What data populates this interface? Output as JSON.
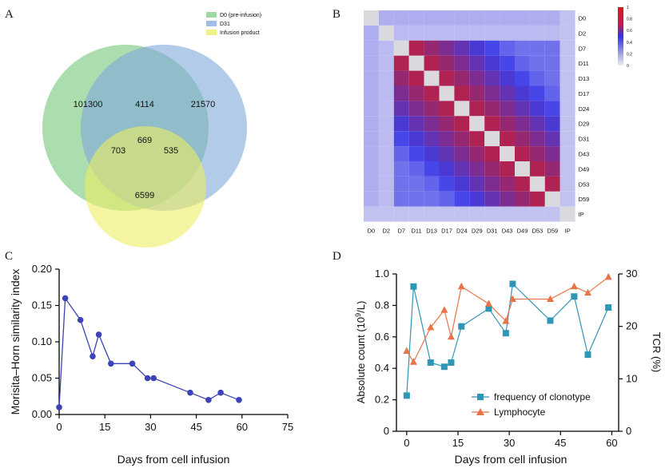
{
  "panel_labels": {
    "a": "A",
    "b": "B",
    "c": "C",
    "d": "D"
  },
  "chart_data": [
    {
      "panel": "A",
      "type": "venn",
      "sets": [
        {
          "name": "D0 (pre-infusion)",
          "color": "#7ecb83"
        },
        {
          "name": "D31",
          "color": "#7fa9db"
        },
        {
          "name": "Infusion product",
          "color": "#ecec62"
        }
      ],
      "regions": {
        "d0_only": 101300,
        "d31_only": 21570,
        "ip_only": 6599,
        "d0_d31": 4114,
        "d0_ip": 703,
        "d31_ip": 535,
        "all": 669
      },
      "region_labels": {
        "d0_only": "101300",
        "d31_only": "21570",
        "ip_only": "6599",
        "d0_d31": "4114",
        "d0_ip": "703",
        "d31_ip": "535",
        "all": "669"
      }
    },
    {
      "panel": "B",
      "type": "heatmap",
      "labels": [
        "D0",
        "D2",
        "D7",
        "D11",
        "D13",
        "D17",
        "D24",
        "D29",
        "D31",
        "D43",
        "D49",
        "D53",
        "D59",
        "IP"
      ],
      "colorbar_ticks": [
        "1",
        "0.8",
        "0.6",
        "0.4",
        "0.2",
        "0"
      ],
      "colors": {
        "high": "#d7191c",
        "mid": "#3232e6",
        "low": "#ececf4"
      }
    },
    {
      "panel": "C",
      "type": "line",
      "xlabel": "Days from cell infusion",
      "ylabel": "Morisita–Horn similarity index",
      "xlim": [
        0,
        75
      ],
      "ylim": [
        0,
        0.2
      ],
      "xticks": [
        0,
        15,
        30,
        45,
        60,
        75
      ],
      "yticks": [
        0.0,
        0.05,
        0.1,
        0.15,
        0.2
      ],
      "xtick_labels": [
        "0",
        "15",
        "30",
        "45",
        "60",
        "75"
      ],
      "ytick_labels": [
        "0.00",
        "0.05",
        "0.10",
        "0.15",
        "0.20"
      ],
      "color": "#3b43b6",
      "x": [
        0,
        2,
        7,
        11,
        13,
        17,
        24,
        29,
        31,
        43,
        49,
        53,
        59
      ],
      "y": [
        0.01,
        0.16,
        0.13,
        0.08,
        0.11,
        0.07,
        0.07,
        0.05,
        0.05,
        0.03,
        0.02,
        0.03,
        0.02
      ]
    },
    {
      "panel": "D",
      "type": "line",
      "xlabel": "Days from cell infusion",
      "ylabel_left": "Absolute count (10",
      "ylabel_left_sup": "9",
      "ylabel_left_end": "/L)",
      "ylabel_right": "TCR (%)",
      "xlim": [
        -3,
        62
      ],
      "ylim_left": [
        0,
        1.0
      ],
      "ylim_right": [
        0,
        30
      ],
      "xticks": [
        0,
        15,
        30,
        45,
        60
      ],
      "xtick_labels": [
        "0",
        "15",
        "30",
        "45",
        "60"
      ],
      "yticks_left": [
        0,
        0.2,
        0.4,
        0.6,
        0.8,
        1.0
      ],
      "ytick_labels_left": [
        "0",
        "0.2",
        "0.4",
        "0.6",
        "0.8",
        "1.0"
      ],
      "yticks_right": [
        0,
        10,
        20,
        30
      ],
      "ytick_labels_right": [
        "0",
        "10",
        "20",
        "30"
      ],
      "series": [
        {
          "name": "frequency of clonotype",
          "axis": "right",
          "marker": "square",
          "color": "#2f97b5",
          "x": [
            0,
            2,
            7,
            11,
            13,
            16,
            24,
            29,
            31,
            42,
            49,
            53,
            59
          ],
          "values": [
            6.8,
            27.6,
            13.1,
            12.3,
            13.1,
            20.0,
            23.4,
            18.7,
            28.1,
            21.1,
            25.7,
            14.6,
            23.6
          ]
        },
        {
          "name": "Lymphocyte",
          "axis": "left",
          "marker": "triangle",
          "color": "#e8744a",
          "x": [
            0,
            2,
            7,
            11,
            13,
            16,
            24,
            29,
            31,
            42,
            49,
            53,
            59
          ],
          "values": [
            0.51,
            0.44,
            0.66,
            0.77,
            0.6,
            0.92,
            0.81,
            0.7,
            0.84,
            0.84,
            0.92,
            0.88,
            0.98
          ]
        }
      ]
    }
  ]
}
